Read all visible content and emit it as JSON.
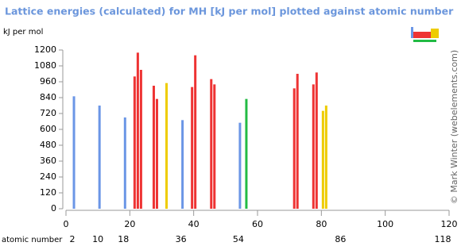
{
  "chart_data": {
    "type": "bar",
    "title": "Lattice energies (calculated) for MH [kJ per mol] plotted against atomic number",
    "y_label": "kJ per mol",
    "x_label": "atomic number",
    "credit": "© Mark Winter (webelements.com)",
    "x": [
      3,
      11,
      19,
      22,
      23,
      24,
      28,
      29,
      32,
      37,
      40,
      41,
      46,
      47,
      55,
      57,
      72,
      73,
      78,
      79,
      81,
      82
    ],
    "values": [
      850,
      780,
      690,
      1000,
      1180,
      1050,
      930,
      830,
      950,
      670,
      920,
      1160,
      980,
      940,
      650,
      830,
      910,
      1020,
      940,
      1030,
      740,
      780
    ],
    "colors": [
      "#6b96e6",
      "#6b96e6",
      "#6b96e6",
      "#ee3333",
      "#ee3333",
      "#ee3333",
      "#ee3333",
      "#ee3333",
      "#eecc00",
      "#6b96e6",
      "#ee3333",
      "#ee3333",
      "#ee3333",
      "#ee3333",
      "#6b96e6",
      "#22bb44",
      "#ee3333",
      "#ee3333",
      "#ee3333",
      "#ee3333",
      "#eecc00",
      "#eecc00"
    ],
    "xlim": [
      0,
      120
    ],
    "xticks": [
      0,
      20,
      40,
      60,
      80,
      100,
      120
    ],
    "ylim": [
      0,
      1200
    ],
    "yticks": [
      0,
      120,
      240,
      360,
      480,
      600,
      720,
      840,
      960,
      1080,
      1200
    ],
    "group_ticks": [
      2,
      10,
      18,
      36,
      54,
      86,
      118
    ]
  }
}
